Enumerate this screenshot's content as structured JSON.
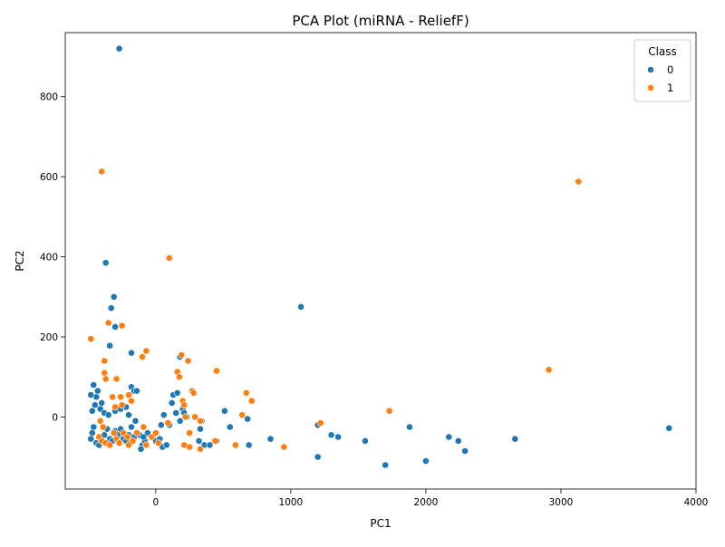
{
  "chart_data": {
    "type": "scatter",
    "title": "PCA Plot (miRNA - ReliefF)",
    "xlabel": "PC1",
    "ylabel": "PC2",
    "xlim": [
      -670,
      4000
    ],
    "ylim": [
      -180,
      960
    ],
    "xticks": [
      0,
      1000,
      2000,
      3000,
      4000
    ],
    "yticks": [
      0,
      200,
      400,
      600,
      800
    ],
    "grid": false,
    "legend": {
      "title": "Class",
      "position": "top-right"
    },
    "series": [
      {
        "name": "0",
        "color": "#1f77b4",
        "points": [
          [
            -270,
            920
          ],
          [
            -370,
            385
          ],
          [
            -310,
            300
          ],
          [
            -330,
            272
          ],
          [
            -300,
            225
          ],
          [
            -340,
            178
          ],
          [
            -180,
            160
          ],
          [
            1075,
            275
          ],
          [
            -460,
            80
          ],
          [
            -430,
            65
          ],
          [
            -440,
            50
          ],
          [
            -480,
            55
          ],
          [
            -400,
            35
          ],
          [
            -450,
            30
          ],
          [
            -470,
            15
          ],
          [
            -410,
            20
          ],
          [
            -380,
            10
          ],
          [
            -350,
            5
          ],
          [
            -300,
            15
          ],
          [
            -260,
            20
          ],
          [
            -220,
            25
          ],
          [
            -180,
            75
          ],
          [
            -160,
            65
          ],
          [
            -140,
            65
          ],
          [
            -200,
            5
          ],
          [
            -150,
            -10
          ],
          [
            -120,
            -45
          ],
          [
            -100,
            -70
          ],
          [
            -80,
            -60
          ],
          [
            -60,
            -40
          ],
          [
            -460,
            -25
          ],
          [
            -470,
            -40
          ],
          [
            -480,
            -55
          ],
          [
            -440,
            -65
          ],
          [
            -420,
            -70
          ],
          [
            -400,
            -50
          ],
          [
            -380,
            -45
          ],
          [
            -360,
            -30
          ],
          [
            -340,
            -55
          ],
          [
            -320,
            -60
          ],
          [
            -300,
            -35
          ],
          [
            -280,
            -45
          ],
          [
            -260,
            -30
          ],
          [
            -240,
            -55
          ],
          [
            -220,
            -60
          ],
          [
            -200,
            -45
          ],
          [
            -180,
            -25
          ],
          [
            -160,
            -50
          ],
          [
            -110,
            -80
          ],
          [
            -90,
            -50
          ],
          [
            0,
            -60
          ],
          [
            30,
            -55
          ],
          [
            50,
            -75
          ],
          [
            80,
            -70
          ],
          [
            100,
            -20
          ],
          [
            120,
            35
          ],
          [
            130,
            55
          ],
          [
            160,
            60
          ],
          [
            180,
            150
          ],
          [
            200,
            20
          ],
          [
            210,
            10
          ],
          [
            230,
            0
          ],
          [
            180,
            -10
          ],
          [
            150,
            10
          ],
          [
            60,
            5
          ],
          [
            40,
            -20
          ],
          [
            340,
            -10
          ],
          [
            330,
            -30
          ],
          [
            320,
            -60
          ],
          [
            360,
            -70
          ],
          [
            400,
            -70
          ],
          [
            450,
            -60
          ],
          [
            510,
            15
          ],
          [
            550,
            -25
          ],
          [
            680,
            -5
          ],
          [
            690,
            -70
          ],
          [
            850,
            -55
          ],
          [
            1200,
            -20
          ],
          [
            1200,
            -100
          ],
          [
            1300,
            -45
          ],
          [
            1350,
            -50
          ],
          [
            1550,
            -60
          ],
          [
            1700,
            -120
          ],
          [
            1880,
            -25
          ],
          [
            2000,
            -110
          ],
          [
            2170,
            -50
          ],
          [
            2240,
            -60
          ],
          [
            2290,
            -85
          ],
          [
            2660,
            -55
          ],
          [
            3800,
            -28
          ]
        ]
      },
      {
        "name": "1",
        "color": "#ff7f0e",
        "points": [
          [
            -400,
            613
          ],
          [
            -480,
            195
          ],
          [
            -350,
            235
          ],
          [
            -250,
            228
          ],
          [
            -380,
            140
          ],
          [
            -380,
            110
          ],
          [
            -370,
            95
          ],
          [
            -290,
            95
          ],
          [
            -320,
            50
          ],
          [
            -260,
            50
          ],
          [
            -200,
            55
          ],
          [
            -180,
            40
          ],
          [
            -250,
            30
          ],
          [
            -300,
            25
          ],
          [
            -100,
            150
          ],
          [
            -70,
            165
          ],
          [
            100,
            397
          ],
          [
            160,
            113
          ],
          [
            175,
            100
          ],
          [
            190,
            155
          ],
          [
            240,
            140
          ],
          [
            270,
            65
          ],
          [
            280,
            60
          ],
          [
            200,
            40
          ],
          [
            210,
            30
          ],
          [
            220,
            0
          ],
          [
            290,
            0
          ],
          [
            330,
            -10
          ],
          [
            450,
            115
          ],
          [
            670,
            60
          ],
          [
            710,
            40
          ],
          [
            640,
            5
          ],
          [
            -410,
            -10
          ],
          [
            -390,
            -25
          ],
          [
            -420,
            -50
          ],
          [
            -400,
            -60
          ],
          [
            -370,
            -65
          ],
          [
            -340,
            -70
          ],
          [
            -310,
            -40
          ],
          [
            -290,
            -55
          ],
          [
            -270,
            -65
          ],
          [
            -240,
            -40
          ],
          [
            -210,
            -50
          ],
          [
            -200,
            -70
          ],
          [
            -170,
            -60
          ],
          [
            -140,
            -40
          ],
          [
            -90,
            -25
          ],
          [
            -70,
            -70
          ],
          [
            -30,
            -50
          ],
          [
            0,
            -40
          ],
          [
            20,
            -65
          ],
          [
            90,
            -15
          ],
          [
            210,
            -70
          ],
          [
            250,
            -40
          ],
          [
            250,
            -75
          ],
          [
            330,
            -80
          ],
          [
            440,
            -60
          ],
          [
            590,
            -70
          ],
          [
            950,
            -75
          ],
          [
            1220,
            -15
          ],
          [
            1730,
            15
          ],
          [
            2910,
            118
          ],
          [
            3130,
            588
          ]
        ]
      }
    ]
  }
}
